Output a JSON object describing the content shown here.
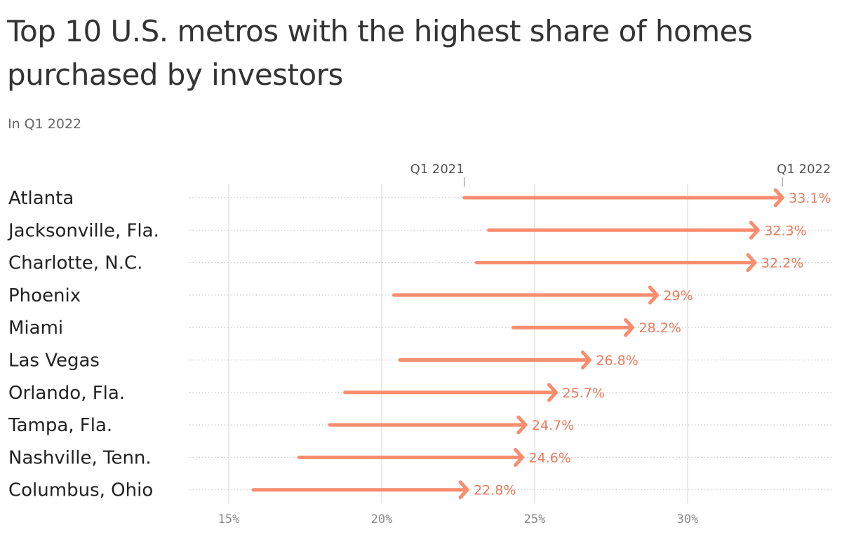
{
  "title": "Top 10 U.S. metros with the highest share of homes purchased by investors",
  "subtitle": "In Q1 2022",
  "colors": {
    "arrow": "#fb8c6e",
    "label": "#ee7a5c",
    "grid": "#dddddd",
    "dots": "#c8c8c8"
  },
  "chart_data": {
    "type": "arrow",
    "title": "Top 10 U.S. metros with the highest share of homes purchased by investors",
    "subtitle": "In Q1 2022",
    "xlim": [
      15,
      35
    ],
    "xticks": [
      15,
      20,
      25,
      30
    ],
    "xtick_labels": [
      "15%",
      "20%",
      "25%",
      "30%"
    ],
    "start_marker": "Q1 2021",
    "end_marker": "Q1 2022",
    "categories": [
      "Atlanta",
      "Jacksonville, Fla.",
      "Charlotte, N.C.",
      "Phoenix",
      "Miami",
      "Las Vegas",
      "Orlando, Fla.",
      "Tampa, Fla.",
      "Nashville, Tenn.",
      "Columbus, Ohio"
    ],
    "series": [
      {
        "name": "Q1 2021",
        "values": [
          22.7,
          23.5,
          23.1,
          20.4,
          24.3,
          20.6,
          18.8,
          18.3,
          17.3,
          15.8
        ]
      },
      {
        "name": "Q1 2022",
        "values": [
          33.1,
          32.3,
          32.2,
          29.0,
          28.2,
          26.8,
          25.7,
          24.7,
          24.6,
          22.8
        ]
      }
    ],
    "value_labels": [
      "33.1%",
      "32.3%",
      "32.2%",
      "29%",
      "28.2%",
      "26.8%",
      "25.7%",
      "24.7%",
      "24.6%",
      "22.8%"
    ],
    "grid": true
  }
}
